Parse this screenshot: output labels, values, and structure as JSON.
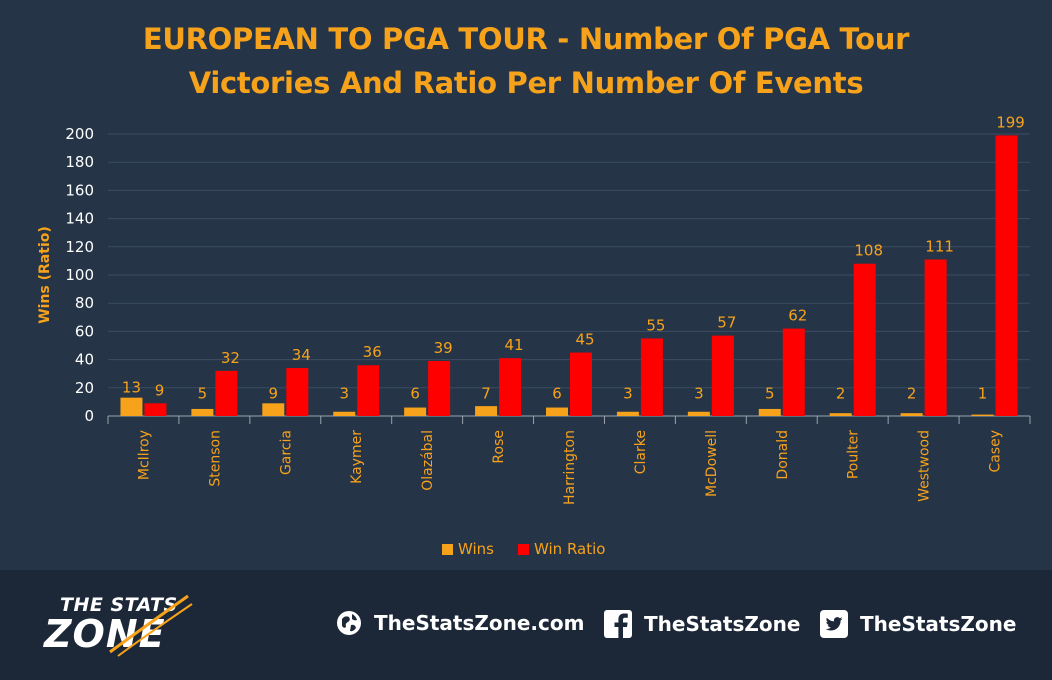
{
  "chart_data": {
    "type": "bar",
    "title_lines": [
      "EUROPEAN TO PGA TOUR - Number Of PGA Tour",
      "Victories And Ratio Per Number Of Events"
    ],
    "ylabel": "Wins (Ratio)",
    "ylim": [
      0,
      200
    ],
    "yticks": [
      0,
      20,
      40,
      60,
      80,
      100,
      120,
      140,
      160,
      180,
      200
    ],
    "grid": true,
    "legend_position": "bottom",
    "categories": [
      "McIlroy",
      "Stenson",
      "Garcia",
      "Kaymer",
      "Olazábal",
      "Rose",
      "Harrington",
      "Clarke",
      "McDowell",
      "Donald",
      "Poulter",
      "Westwood",
      "Casey"
    ],
    "series": [
      {
        "name": "Wins",
        "color": "#F7A21B",
        "values": [
          13,
          5,
          9,
          3,
          6,
          7,
          6,
          3,
          3,
          5,
          2,
          2,
          1
        ]
      },
      {
        "name": "Win Ratio",
        "color": "#FF0000",
        "values": [
          9,
          32,
          34,
          36,
          39,
          41,
          45,
          55,
          57,
          62,
          108,
          111,
          199
        ]
      }
    ]
  },
  "footer": {
    "logo_top": "THE STATS",
    "logo_bottom": "ZONE",
    "website": "TheStatsZone.com",
    "facebook": "TheStatsZone",
    "twitter": "TheStatsZone",
    "icons": [
      "globe-icon",
      "facebook-icon",
      "twitter-icon"
    ]
  }
}
